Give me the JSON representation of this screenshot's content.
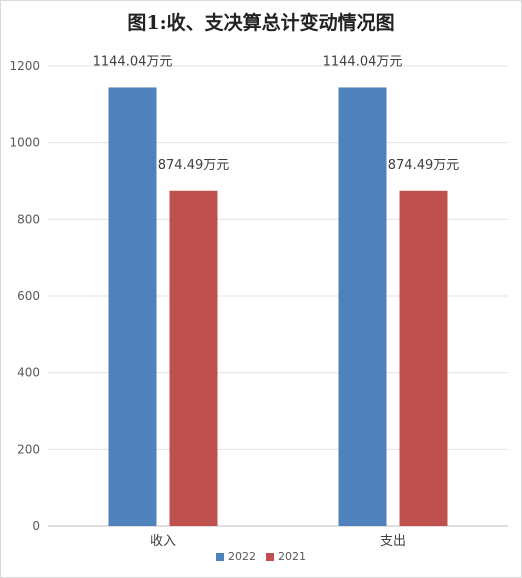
{
  "chart_data": {
    "type": "bar",
    "title": "图1:收、支决算总计变动情况图",
    "categories": [
      "收入",
      "支出"
    ],
    "series": [
      {
        "name": "2022",
        "values": [
          1144.04,
          1144.04
        ],
        "labels": [
          "1144.04万元",
          "1144.04万元"
        ],
        "color": "#4f81bd"
      },
      {
        "name": "2021",
        "values": [
          874.49,
          874.49
        ],
        "labels": [
          "874.49万元",
          "874.49万元"
        ],
        "color": "#c0504d"
      }
    ],
    "yticks": [
      "0",
      "200",
      "400",
      "600",
      "800",
      "1000",
      "1200"
    ],
    "ylim": [
      0,
      1200
    ],
    "grid": true,
    "legend_position": "bottom"
  }
}
